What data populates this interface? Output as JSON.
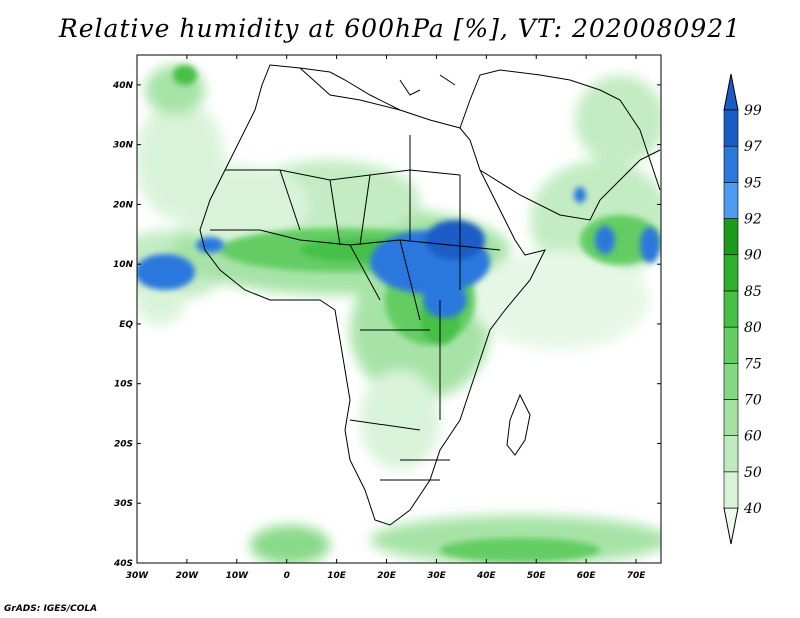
{
  "title": "Relative humidity at 600hPa [%], VT: 2020080921",
  "footer": "GrADS: IGES/COLA",
  "map": {
    "lon_range": [
      -30,
      75
    ],
    "lat_range": [
      -40,
      45
    ],
    "lon_ticks": [
      {
        "value": -30,
        "label": "30W"
      },
      {
        "value": -20,
        "label": "20W"
      },
      {
        "value": -10,
        "label": "10W"
      },
      {
        "value": 0,
        "label": "0"
      },
      {
        "value": 10,
        "label": "10E"
      },
      {
        "value": 20,
        "label": "20E"
      },
      {
        "value": 30,
        "label": "30E"
      },
      {
        "value": 40,
        "label": "40E"
      },
      {
        "value": 50,
        "label": "50E"
      },
      {
        "value": 60,
        "label": "60E"
      },
      {
        "value": 70,
        "label": "70E"
      }
    ],
    "lat_ticks": [
      {
        "value": 40,
        "label": "40N"
      },
      {
        "value": 30,
        "label": "30N"
      },
      {
        "value": 20,
        "label": "20N"
      },
      {
        "value": 10,
        "label": "10N"
      },
      {
        "value": 0,
        "label": "EQ"
      },
      {
        "value": -10,
        "label": "10S"
      },
      {
        "value": -20,
        "label": "20S"
      },
      {
        "value": -30,
        "label": "30S"
      },
      {
        "value": -40,
        "label": "40S"
      }
    ]
  },
  "colorbar": {
    "levels": [
      {
        "label": "40",
        "color": "#f0fbf0"
      },
      {
        "label": "50",
        "color": "#d8f3d8"
      },
      {
        "label": "60",
        "color": "#c0ebc0"
      },
      {
        "label": "70",
        "color": "#a3e2a3"
      },
      {
        "label": "75",
        "color": "#84d884"
      },
      {
        "label": "80",
        "color": "#64cd64"
      },
      {
        "label": "85",
        "color": "#46c046"
      },
      {
        "label": "90",
        "color": "#2eaf2e"
      },
      {
        "label": "92",
        "color": "#1c9a1c"
      },
      {
        "label": "95",
        "color": "#4d9cf0"
      },
      {
        "label": "97",
        "color": "#2a78de"
      },
      {
        "label": "99",
        "color": "#1a5cc6"
      }
    ]
  }
}
